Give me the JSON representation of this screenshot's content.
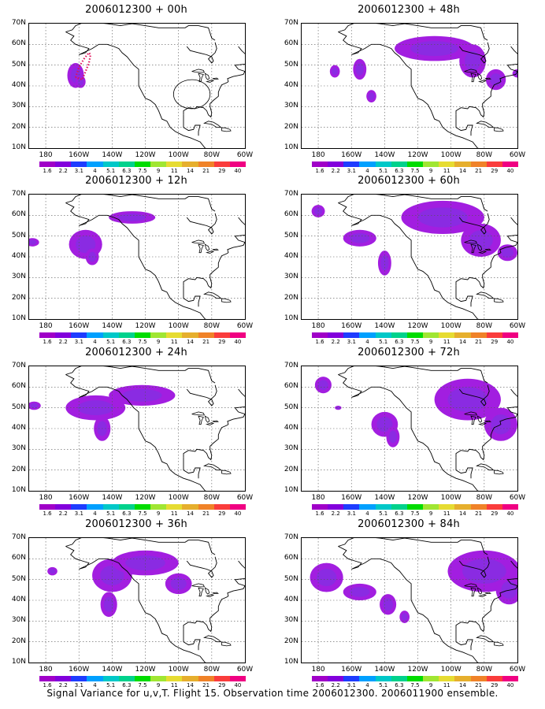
{
  "panels": [
    {
      "title": "2006012300 + 00h",
      "blobs": [
        {
          "cx": 162,
          "cy": 45,
          "rx": 5,
          "ry": 6
        },
        {
          "cx": 159,
          "cy": 42,
          "rx": 3,
          "ry": 3
        }
      ],
      "flight_track": true
    },
    {
      "title": "2006012300 + 48h",
      "blobs": [
        {
          "cx": 110,
          "cy": 58,
          "rx": 24,
          "ry": 6
        },
        {
          "cx": 87,
          "cy": 52,
          "rx": 8,
          "ry": 8
        },
        {
          "cx": 73,
          "cy": 43,
          "rx": 6,
          "ry": 5
        },
        {
          "cx": 170,
          "cy": 47,
          "rx": 3,
          "ry": 3
        },
        {
          "cx": 155,
          "cy": 48,
          "rx": 4,
          "ry": 5
        },
        {
          "cx": 148,
          "cy": 35,
          "rx": 3,
          "ry": 3
        },
        {
          "cx": 60,
          "cy": 46,
          "rx": 3,
          "ry": 2
        }
      ]
    },
    {
      "title": "2006012300 + 12h",
      "blobs": [
        {
          "cx": 156,
          "cy": 46,
          "rx": 10,
          "ry": 7
        },
        {
          "cx": 128,
          "cy": 59,
          "rx": 14,
          "ry": 3
        },
        {
          "cx": 152,
          "cy": 40,
          "rx": 4,
          "ry": 4
        },
        {
          "cx": 188,
          "cy": 47,
          "rx": 4,
          "ry": 2
        }
      ]
    },
    {
      "title": "2006012300 + 60h",
      "blobs": [
        {
          "cx": 105,
          "cy": 59,
          "rx": 25,
          "ry": 8
        },
        {
          "cx": 82,
          "cy": 48,
          "rx": 12,
          "ry": 8
        },
        {
          "cx": 66,
          "cy": 42,
          "rx": 6,
          "ry": 4
        },
        {
          "cx": 155,
          "cy": 49,
          "rx": 10,
          "ry": 4
        },
        {
          "cx": 140,
          "cy": 37,
          "rx": 4,
          "ry": 6
        },
        {
          "cx": 180,
          "cy": 62,
          "rx": 4,
          "ry": 3
        }
      ]
    },
    {
      "title": "2006012300 + 24h",
      "blobs": [
        {
          "cx": 150,
          "cy": 50,
          "rx": 18,
          "ry": 6
        },
        {
          "cx": 122,
          "cy": 56,
          "rx": 20,
          "ry": 5
        },
        {
          "cx": 146,
          "cy": 40,
          "rx": 5,
          "ry": 6
        },
        {
          "cx": 187,
          "cy": 51,
          "rx": 4,
          "ry": 2
        }
      ]
    },
    {
      "title": "2006012300 + 72h",
      "blobs": [
        {
          "cx": 90,
          "cy": 54,
          "rx": 20,
          "ry": 10
        },
        {
          "cx": 70,
          "cy": 42,
          "rx": 10,
          "ry": 8
        },
        {
          "cx": 140,
          "cy": 42,
          "rx": 8,
          "ry": 6
        },
        {
          "cx": 135,
          "cy": 36,
          "rx": 4,
          "ry": 5
        },
        {
          "cx": 177,
          "cy": 61,
          "rx": 5,
          "ry": 4
        },
        {
          "cx": 168,
          "cy": 50,
          "rx": 2,
          "ry": 1
        }
      ]
    },
    {
      "title": "2006012300 + 36h",
      "blobs": [
        {
          "cx": 140,
          "cy": 52,
          "rx": 12,
          "ry": 8
        },
        {
          "cx": 120,
          "cy": 58,
          "rx": 20,
          "ry": 6
        },
        {
          "cx": 100,
          "cy": 48,
          "rx": 8,
          "ry": 5
        },
        {
          "cx": 142,
          "cy": 38,
          "rx": 5,
          "ry": 6
        },
        {
          "cx": 176,
          "cy": 54,
          "rx": 3,
          "ry": 2
        }
      ]
    },
    {
      "title": "2006012300 + 84h",
      "blobs": [
        {
          "cx": 80,
          "cy": 54,
          "rx": 22,
          "ry": 10
        },
        {
          "cx": 65,
          "cy": 45,
          "rx": 8,
          "ry": 7
        },
        {
          "cx": 175,
          "cy": 51,
          "rx": 10,
          "ry": 7
        },
        {
          "cx": 155,
          "cy": 44,
          "rx": 10,
          "ry": 4
        },
        {
          "cx": 138,
          "cy": 38,
          "rx": 5,
          "ry": 5
        },
        {
          "cx": 128,
          "cy": 32,
          "rx": 3,
          "ry": 3
        }
      ]
    }
  ],
  "axes": {
    "lat_labels": [
      "70N",
      "60N",
      "50N",
      "40N",
      "30N",
      "20N",
      "10N"
    ],
    "lon_labels": [
      "180",
      "160W",
      "140W",
      "120W",
      "100W",
      "80W",
      "60W"
    ],
    "lon_range": [
      -190,
      -60
    ],
    "lat_range": [
      10,
      70
    ]
  },
  "colorbar": {
    "labels": [
      "1.6",
      "2.2",
      "3.1",
      "4",
      "5.1",
      "6.3",
      "7.5",
      "9",
      "11",
      "14",
      "21",
      "29",
      "40"
    ],
    "colors": [
      "#a000c8",
      "#8200dc",
      "#1e3cff",
      "#00a0ff",
      "#00c8c8",
      "#00d28c",
      "#00dc00",
      "#a0e632",
      "#e6dc32",
      "#e6af2d",
      "#f08228",
      "#fa3c3c",
      "#f00082"
    ]
  },
  "shading": {
    "outer": "#a21ee0",
    "inner": "#8a2be2"
  },
  "caption": "Signal Variance for u,v,T. Flight 15. Observation time 2006012300. 2006011900 ensemble."
}
